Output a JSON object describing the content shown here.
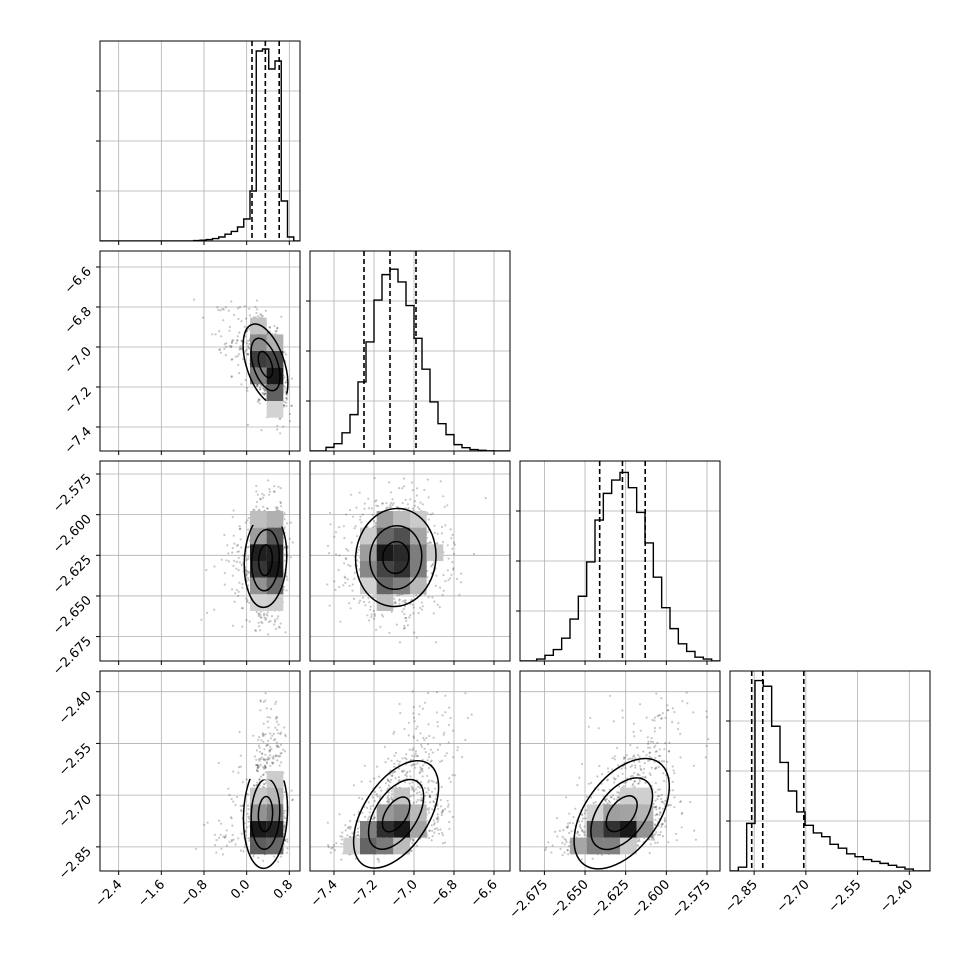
{
  "chart_data": {
    "type": "corner",
    "parameters": [
      {
        "hist": [
          0,
          0,
          0,
          0,
          0,
          0,
          0,
          0,
          0,
          0,
          0,
          0,
          0,
          0,
          0,
          0.002,
          0.004,
          0.007,
          0.012,
          0.02,
          0.034,
          0.048,
          0.07,
          0.11,
          0.25,
          0.95,
          0.96,
          0.86,
          0.9,
          0.2,
          0.02,
          0
        ],
        "range": [
          -2.75,
          1.0
        ],
        "quantiles": [
          0.1,
          0.35,
          0.61
        ],
        "ticks": [
          -2.4,
          -1.6,
          -0.8,
          0.0,
          0.8
        ],
        "tick_labels": [
          "−2.4",
          "−1.6",
          "−0.8",
          "0.0",
          "0.8"
        ],
        "ylim": [
          0,
          1.0
        ]
      },
      {
        "hist": [
          0,
          0,
          0.02,
          0.04,
          0.1,
          0.2,
          0.38,
          0.6,
          0.83,
          0.97,
          1.0,
          0.93,
          0.8,
          0.62,
          0.45,
          0.27,
          0.15,
          0.09,
          0.035,
          0.018,
          0.008,
          0.004,
          0.001,
          0,
          0
        ],
        "range": [
          -7.52,
          -6.52
        ],
        "quantiles": [
          -7.25,
          -7.12,
          -6.99
        ],
        "ticks": [
          -7.4,
          -7.2,
          -7.0,
          -6.8,
          -6.6
        ],
        "tick_labels": [
          "−7.4",
          "−7.2",
          "−7.0",
          "−6.8",
          "−6.6"
        ],
        "ylim": [
          0,
          1.1
        ]
      },
      {
        "hist": [
          0,
          0,
          0.01,
          0.03,
          0.06,
          0.12,
          0.22,
          0.34,
          0.52,
          0.74,
          0.88,
          0.95,
          0.99,
          0.91,
          0.78,
          0.62,
          0.44,
          0.28,
          0.17,
          0.09,
          0.05,
          0.02,
          0.01,
          0
        ],
        "range": [
          -2.69,
          -2.567
        ],
        "quantiles": [
          -2.641,
          -2.627,
          -2.613
        ],
        "ticks": [
          -2.675,
          -2.65,
          -2.625,
          -2.6,
          -2.575
        ],
        "tick_labels": [
          "−2.675",
          "−2.650",
          "−2.625",
          "−2.600",
          "−2.575"
        ],
        "ylim": [
          0,
          1.05
        ]
      },
      {
        "hist": [
          0,
          0.02,
          0.25,
          1.0,
          0.97,
          0.76,
          0.57,
          0.42,
          0.31,
          0.24,
          0.2,
          0.18,
          0.14,
          0.12,
          0.09,
          0.075,
          0.06,
          0.05,
          0.04,
          0.03,
          0.02,
          0.01,
          0,
          0
        ],
        "range": [
          -2.92,
          -2.34
        ],
        "quantiles": [
          -2.857,
          -2.825,
          -2.706
        ],
        "ticks": [
          -2.85,
          -2.7,
          -2.55,
          -2.4
        ],
        "tick_labels": [
          "−2.85",
          "−2.70",
          "−2.55",
          "−2.40"
        ],
        "ylim": [
          0,
          1.05
        ]
      }
    ],
    "correlations": [
      [
        0,
        -0.55,
        0.05,
        0.1
      ],
      [
        -0.55,
        0,
        0.0,
        0.55
      ],
      [
        0.05,
        0.0,
        0,
        0.55
      ],
      [
        0.1,
        0.55,
        0.55,
        0
      ]
    ],
    "grid": true,
    "contour_levels": 3
  }
}
